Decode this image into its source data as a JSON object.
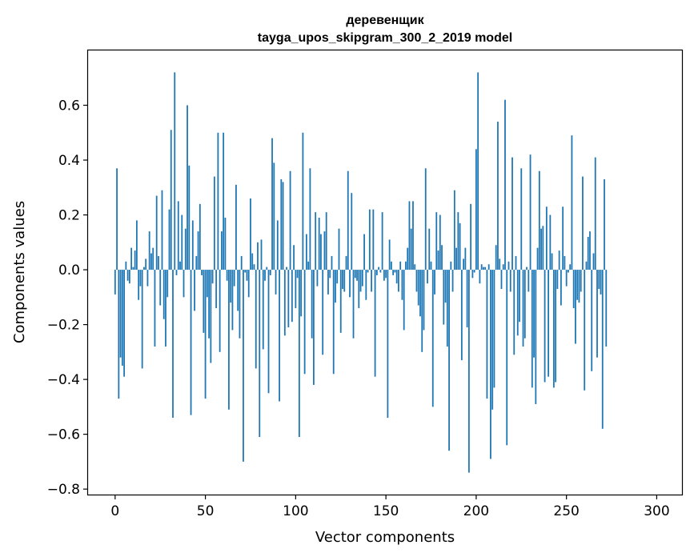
{
  "chart_data": {
    "type": "bar",
    "title": "деревенщик",
    "subtitle": "tayga_upos_skipgram_300_2_2019 model",
    "xlabel": "Vector components",
    "ylabel": "Components values",
    "xlim": [
      -15,
      314
    ],
    "ylim": [
      -0.82,
      0.8
    ],
    "xticks": [
      0,
      50,
      100,
      150,
      200,
      250,
      300
    ],
    "yticks": [
      -0.8,
      -0.6,
      -0.4,
      -0.2,
      0.0,
      0.2,
      0.4,
      0.6
    ],
    "ytick_labels": [
      "−0.8",
      "−0.6",
      "−0.4",
      "−0.2",
      "0.0",
      "0.2",
      "0.4",
      "0.6"
    ],
    "grid": false,
    "bar_color": "#1f77b4",
    "values": [
      -0.09,
      0.37,
      -0.47,
      -0.32,
      -0.35,
      -0.39,
      0.03,
      -0.04,
      -0.05,
      0.08,
      0.01,
      0.07,
      0.18,
      -0.11,
      -0.06,
      -0.36,
      0.01,
      0.04,
      -0.06,
      0.14,
      0.06,
      0.08,
      -0.28,
      0.27,
      0.05,
      -0.13,
      0.29,
      -0.18,
      -0.28,
      -0.1,
      0.22,
      0.51,
      -0.54,
      0.72,
      -0.02,
      0.25,
      0.03,
      0.2,
      -0.1,
      0.15,
      0.6,
      0.38,
      -0.53,
      0.18,
      -0.15,
      0.05,
      0.14,
      0.24,
      -0.02,
      -0.23,
      -0.47,
      -0.1,
      -0.25,
      -0.34,
      -0.05,
      0.34,
      -0.14,
      0.5,
      -0.3,
      0.14,
      0.5,
      0.19,
      -0.04,
      -0.51,
      -0.12,
      -0.22,
      -0.06,
      0.31,
      -0.15,
      -0.25,
      0.05,
      -0.7,
      -0.01,
      -0.04,
      -0.1,
      0.26,
      0.06,
      0.02,
      -0.36,
      0.1,
      -0.61,
      0.11,
      -0.29,
      -0.04,
      0.01,
      -0.45,
      -0.02,
      0.48,
      0.39,
      -0.09,
      0.18,
      -0.48,
      0.33,
      0.32,
      -0.24,
      0.01,
      -0.21,
      0.36,
      -0.19,
      0.09,
      -0.14,
      -0.03,
      -0.61,
      -0.17,
      0.5,
      -0.38,
      0.13,
      0.03,
      0.37,
      -0.25,
      -0.42,
      0.21,
      -0.06,
      0.19,
      0.13,
      -0.31,
      0.14,
      0.21,
      -0.09,
      -0.03,
      0.05,
      -0.38,
      -0.12,
      -0.05,
      0.15,
      -0.23,
      -0.07,
      -0.08,
      0.05,
      0.36,
      -0.1,
      0.28,
      -0.25,
      -0.03,
      -0.04,
      -0.14,
      -0.08,
      -0.06,
      0.13,
      -0.11,
      -0.01,
      0.22,
      -0.08,
      0.22,
      -0.39,
      -0.02,
      0.01,
      -0.01,
      0.21,
      -0.04,
      -0.03,
      -0.54,
      0.11,
      0.03,
      -0.02,
      -0.01,
      -0.05,
      -0.08,
      0.03,
      -0.11,
      -0.22,
      0.03,
      0.08,
      0.25,
      0.15,
      0.25,
      0.02,
      -0.08,
      -0.13,
      -0.17,
      -0.3,
      -0.22,
      0.37,
      -0.05,
      0.15,
      0.03,
      -0.5,
      -0.09,
      0.21,
      0.07,
      0.2,
      0.09,
      -0.2,
      -0.12,
      -0.28,
      -0.66,
      0.03,
      -0.08,
      0.29,
      0.08,
      0.21,
      0.17,
      -0.33,
      0.04,
      0.08,
      -0.21,
      -0.74,
      0.24,
      -0.03,
      -0.01,
      0.44,
      0.72,
      -0.05,
      0.02,
      0.01,
      0.01,
      -0.47,
      0.02,
      -0.69,
      -0.51,
      -0.43,
      0.09,
      0.54,
      0.04,
      -0.07,
      0.02,
      0.62,
      -0.64,
      0.03,
      -0.08,
      0.41,
      -0.31,
      0.05,
      -0.24,
      -0.19,
      0.37,
      -0.28,
      -0.25,
      0.01,
      -0.08,
      0.42,
      -0.43,
      -0.32,
      -0.49,
      0.08,
      0.36,
      0.15,
      0.16,
      -0.41,
      0.23,
      -0.39,
      0.2,
      0.06,
      -0.43,
      -0.41,
      -0.07,
      0.07,
      -0.13,
      0.23,
      0.05,
      -0.06,
      -0.01,
      0.02,
      0.49,
      -0.14,
      -0.27,
      -0.11,
      -0.12,
      -0.08,
      0.34,
      -0.44,
      0.03,
      0.12,
      0.14,
      -0.37,
      0.06,
      0.41,
      -0.32,
      -0.07,
      -0.09,
      -0.58,
      0.33,
      -0.28
    ]
  }
}
